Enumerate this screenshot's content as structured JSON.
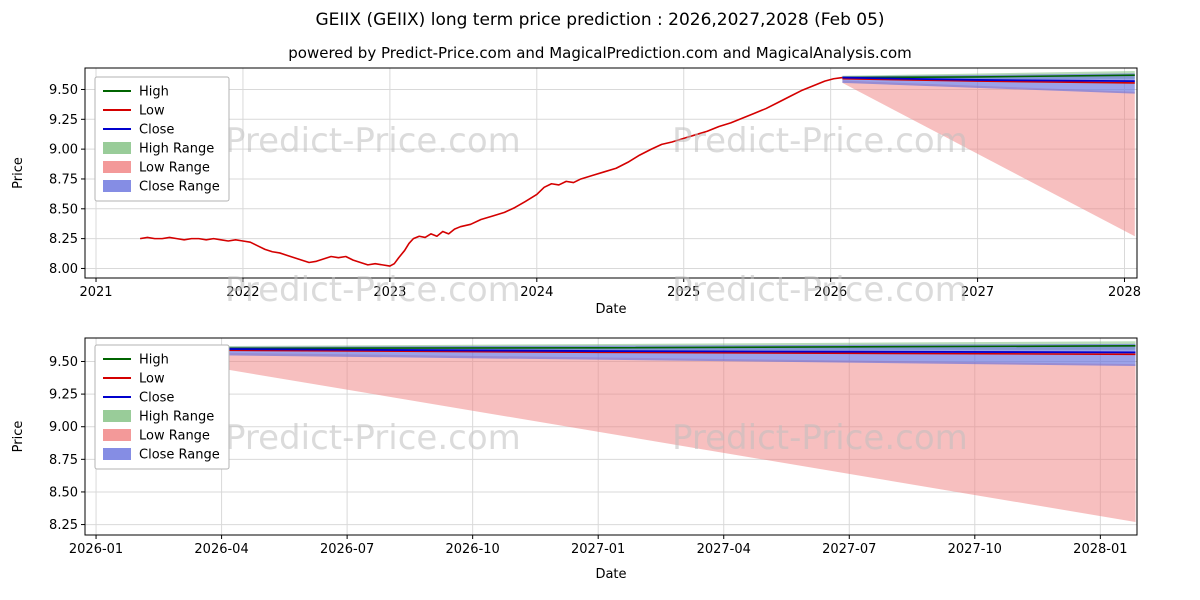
{
  "title": "GEIIX (GEIIX) long term price prediction : 2026,2027,2028 (Feb 05)",
  "subtitle": "powered by Predict-Price.com and MagicalPrediction.com and MagicalAnalysis.com",
  "watermark_text": "Predict-Price.com",
  "colors": {
    "high": "#006400",
    "low": "#d40000",
    "close": "#0000cd",
    "high_range": "#7fbf7f",
    "low_range": "#f08080",
    "close_range": "#6670dd",
    "grid": "#d9d9d9",
    "watermark": "#bfbfbf",
    "axis": "#000000"
  },
  "legend": [
    {
      "label": "High",
      "type": "line",
      "color_key": "high"
    },
    {
      "label": "Low",
      "type": "line",
      "color_key": "low"
    },
    {
      "label": "Close",
      "type": "line",
      "color_key": "close"
    },
    {
      "label": "High Range",
      "type": "patch",
      "color_key": "high_range"
    },
    {
      "label": "Low Range",
      "type": "patch",
      "color_key": "low_range"
    },
    {
      "label": "Close Range",
      "type": "patch",
      "color_key": "close_range"
    }
  ],
  "chart_data": [
    {
      "type": "line",
      "name": "full-history-and-forecast",
      "xlabel": "Date",
      "ylabel": "Price",
      "xlim": [
        2020.925,
        2028.085
      ],
      "ylim": [
        7.92,
        9.68
      ],
      "x_ticks": [
        {
          "v": 2021,
          "label": "2021"
        },
        {
          "v": 2022,
          "label": "2022"
        },
        {
          "v": 2023,
          "label": "2023"
        },
        {
          "v": 2024,
          "label": "2024"
        },
        {
          "v": 2025,
          "label": "2025"
        },
        {
          "v": 2026,
          "label": "2026"
        },
        {
          "v": 2027,
          "label": "2027"
        },
        {
          "v": 2028,
          "label": "2028"
        }
      ],
      "y_ticks": [
        {
          "v": 8.0,
          "label": "8.00"
        },
        {
          "v": 8.25,
          "label": "8.25"
        },
        {
          "v": 8.5,
          "label": "8.50"
        },
        {
          "v": 8.75,
          "label": "8.75"
        },
        {
          "v": 9.0,
          "label": "9.00"
        },
        {
          "v": 9.25,
          "label": "9.25"
        },
        {
          "v": 9.5,
          "label": "9.50"
        }
      ],
      "bands": [
        {
          "name": "high-range",
          "color_key": "high_range",
          "opacity": 0.55,
          "upper": [
            [
              2026.08,
              9.615
            ],
            [
              2028.07,
              9.655
            ]
          ],
          "lower": [
            [
              2026.08,
              9.585
            ],
            [
              2028.07,
              9.59
            ]
          ]
        },
        {
          "name": "low-range",
          "color_key": "low_range",
          "opacity": 0.5,
          "upper": [
            [
              2026.08,
              9.575
            ],
            [
              2028.07,
              9.48
            ]
          ],
          "lower": [
            [
              2026.08,
              9.555
            ],
            [
              2028.07,
              8.27
            ]
          ]
        },
        {
          "name": "close-range",
          "color_key": "close_range",
          "opacity": 0.65,
          "upper": [
            [
              2026.08,
              9.61
            ],
            [
              2028.07,
              9.635
            ]
          ],
          "lower": [
            [
              2026.08,
              9.555
            ],
            [
              2028.07,
              9.465
            ]
          ]
        }
      ],
      "series": [
        {
          "name": "low-history",
          "color_key": "low",
          "width": 1.6,
          "points": [
            [
              2021.3,
              8.25
            ],
            [
              2021.35,
              8.26
            ],
            [
              2021.4,
              8.25
            ],
            [
              2021.45,
              8.25
            ],
            [
              2021.5,
              8.26
            ],
            [
              2021.55,
              8.25
            ],
            [
              2021.6,
              8.24
            ],
            [
              2021.65,
              8.25
            ],
            [
              2021.7,
              8.25
            ],
            [
              2021.75,
              8.24
            ],
            [
              2021.8,
              8.25
            ],
            [
              2021.85,
              8.24
            ],
            [
              2021.9,
              8.23
            ],
            [
              2021.95,
              8.24
            ],
            [
              2022.0,
              8.23
            ],
            [
              2022.05,
              8.22
            ],
            [
              2022.1,
              8.19
            ],
            [
              2022.15,
              8.16
            ],
            [
              2022.2,
              8.14
            ],
            [
              2022.25,
              8.13
            ],
            [
              2022.3,
              8.11
            ],
            [
              2022.35,
              8.09
            ],
            [
              2022.4,
              8.07
            ],
            [
              2022.45,
              8.05
            ],
            [
              2022.5,
              8.06
            ],
            [
              2022.55,
              8.08
            ],
            [
              2022.6,
              8.1
            ],
            [
              2022.65,
              8.09
            ],
            [
              2022.7,
              8.1
            ],
            [
              2022.75,
              8.07
            ],
            [
              2022.8,
              8.05
            ],
            [
              2022.85,
              8.03
            ],
            [
              2022.9,
              8.04
            ],
            [
              2022.95,
              8.03
            ],
            [
              2023.0,
              8.02
            ],
            [
              2023.03,
              8.04
            ],
            [
              2023.06,
              8.09
            ],
            [
              2023.1,
              8.15
            ],
            [
              2023.13,
              8.21
            ],
            [
              2023.16,
              8.25
            ],
            [
              2023.2,
              8.27
            ],
            [
              2023.24,
              8.26
            ],
            [
              2023.28,
              8.29
            ],
            [
              2023.32,
              8.27
            ],
            [
              2023.36,
              8.31
            ],
            [
              2023.4,
              8.29
            ],
            [
              2023.44,
              8.33
            ],
            [
              2023.48,
              8.35
            ],
            [
              2023.55,
              8.37
            ],
            [
              2023.62,
              8.41
            ],
            [
              2023.7,
              8.44
            ],
            [
              2023.78,
              8.47
            ],
            [
              2023.85,
              8.51
            ],
            [
              2023.92,
              8.56
            ],
            [
              2024.0,
              8.62
            ],
            [
              2024.05,
              8.68
            ],
            [
              2024.1,
              8.71
            ],
            [
              2024.15,
              8.7
            ],
            [
              2024.2,
              8.73
            ],
            [
              2024.25,
              8.72
            ],
            [
              2024.3,
              8.75
            ],
            [
              2024.38,
              8.78
            ],
            [
              2024.46,
              8.81
            ],
            [
              2024.54,
              8.84
            ],
            [
              2024.62,
              8.89
            ],
            [
              2024.7,
              8.95
            ],
            [
              2024.78,
              9.0
            ],
            [
              2024.85,
              9.04
            ],
            [
              2024.92,
              9.06
            ],
            [
              2025.0,
              9.09
            ],
            [
              2025.08,
              9.12
            ],
            [
              2025.16,
              9.15
            ],
            [
              2025.24,
              9.19
            ],
            [
              2025.32,
              9.22
            ],
            [
              2025.4,
              9.26
            ],
            [
              2025.48,
              9.3
            ],
            [
              2025.56,
              9.34
            ],
            [
              2025.64,
              9.39
            ],
            [
              2025.72,
              9.44
            ],
            [
              2025.8,
              9.49
            ],
            [
              2025.88,
              9.53
            ],
            [
              2025.96,
              9.57
            ],
            [
              2026.02,
              9.59
            ],
            [
              2026.08,
              9.6
            ]
          ]
        },
        {
          "name": "high-forecast",
          "color_key": "high",
          "width": 1.6,
          "points": [
            [
              2026.08,
              9.6
            ],
            [
              2027.0,
              9.605
            ],
            [
              2028.07,
              9.62
            ]
          ]
        },
        {
          "name": "low-forecast",
          "color_key": "low",
          "width": 1.6,
          "points": [
            [
              2026.08,
              9.59
            ],
            [
              2027.0,
              9.57
            ],
            [
              2028.07,
              9.555
            ]
          ]
        },
        {
          "name": "close-forecast",
          "color_key": "close",
          "width": 1.8,
          "points": [
            [
              2026.08,
              9.6
            ],
            [
              2026.5,
              9.59
            ],
            [
              2027.0,
              9.58
            ],
            [
              2027.5,
              9.575
            ],
            [
              2028.07,
              9.57
            ]
          ]
        }
      ]
    },
    {
      "type": "line",
      "name": "forecast-zoom",
      "xlabel": "Date",
      "ylabel": "Price",
      "xlim": [
        2025.978,
        2028.073
      ],
      "ylim": [
        8.17,
        9.68
      ],
      "x_ticks": [
        {
          "v": 2026.0,
          "label": "2026-01"
        },
        {
          "v": 2026.25,
          "label": "2026-04"
        },
        {
          "v": 2026.5,
          "label": "2026-07"
        },
        {
          "v": 2026.75,
          "label": "2026-10"
        },
        {
          "v": 2027.0,
          "label": "2027-01"
        },
        {
          "v": 2027.25,
          "label": "2027-04"
        },
        {
          "v": 2027.5,
          "label": "2027-07"
        },
        {
          "v": 2027.75,
          "label": "2027-10"
        },
        {
          "v": 2028.0,
          "label": "2028-01"
        }
      ],
      "y_ticks": [
        {
          "v": 8.25,
          "label": "8.25"
        },
        {
          "v": 8.5,
          "label": "8.50"
        },
        {
          "v": 8.75,
          "label": "8.75"
        },
        {
          "v": 9.0,
          "label": "9.00"
        },
        {
          "v": 9.25,
          "label": "9.25"
        },
        {
          "v": 9.5,
          "label": "9.50"
        }
      ],
      "bands": [
        {
          "name": "high-range",
          "color_key": "high_range",
          "opacity": 0.55,
          "upper": [
            [
              2026.08,
              9.615
            ],
            [
              2028.07,
              9.655
            ]
          ],
          "lower": [
            [
              2026.08,
              9.585
            ],
            [
              2028.07,
              9.59
            ]
          ]
        },
        {
          "name": "low-range",
          "color_key": "low_range",
          "opacity": 0.5,
          "upper": [
            [
              2026.08,
              9.575
            ],
            [
              2028.07,
              9.48
            ]
          ],
          "lower": [
            [
              2026.08,
              9.555
            ],
            [
              2028.07,
              8.27
            ]
          ]
        },
        {
          "name": "close-range",
          "color_key": "close_range",
          "opacity": 0.65,
          "upper": [
            [
              2026.08,
              9.61
            ],
            [
              2028.07,
              9.635
            ]
          ],
          "lower": [
            [
              2026.08,
              9.555
            ],
            [
              2028.07,
              9.465
            ]
          ]
        }
      ],
      "series": [
        {
          "name": "high-forecast",
          "color_key": "high",
          "width": 1.6,
          "points": [
            [
              2026.08,
              9.6
            ],
            [
              2027.0,
              9.605
            ],
            [
              2028.07,
              9.62
            ]
          ]
        },
        {
          "name": "low-forecast",
          "color_key": "low",
          "width": 1.6,
          "points": [
            [
              2026.08,
              9.59
            ],
            [
              2027.0,
              9.57
            ],
            [
              2028.07,
              9.555
            ]
          ]
        },
        {
          "name": "close-forecast",
          "color_key": "close",
          "width": 1.8,
          "points": [
            [
              2026.08,
              9.6
            ],
            [
              2026.5,
              9.59
            ],
            [
              2027.0,
              9.58
            ],
            [
              2027.5,
              9.575
            ],
            [
              2028.07,
              9.57
            ]
          ]
        }
      ]
    }
  ]
}
